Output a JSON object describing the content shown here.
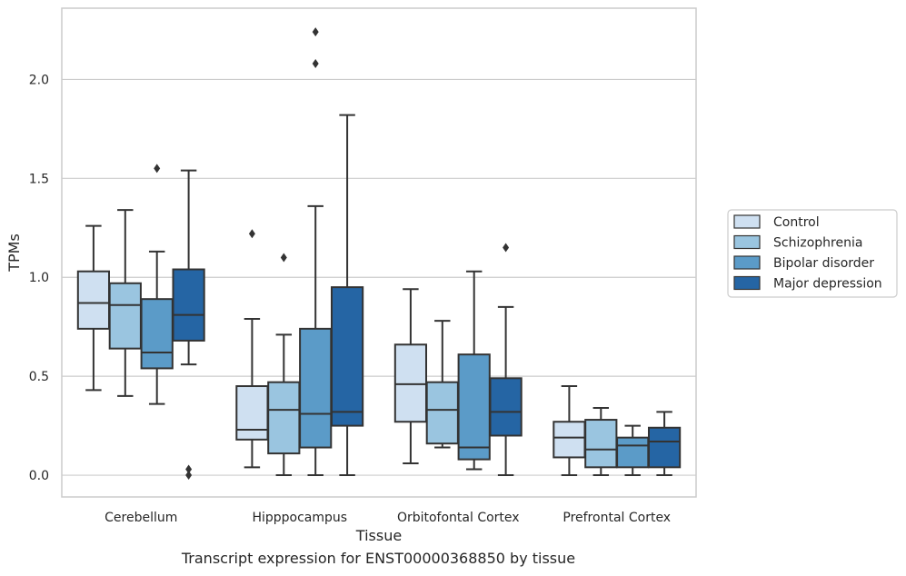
{
  "caption": "Transcript expression for ENST00000368850 by tissue",
  "chart_data": {
    "type": "box",
    "xlabel": "Tissue",
    "ylabel": "TPMs",
    "ylim": [
      -0.11,
      2.36
    ],
    "yticks": [
      "0.0",
      "0.5",
      "1.0",
      "1.5",
      "2.0"
    ],
    "ytick_values": [
      0.0,
      0.5,
      1.0,
      1.5,
      2.0
    ],
    "grid": "horizontal",
    "legend_position": "right",
    "categories": [
      "Cerebellum",
      "Hipppocampus",
      "Orbitofontal Cortex",
      "Prefrontal Cortex"
    ],
    "series": [
      {
        "name": "Control",
        "color": "#cfe0f1",
        "boxes": [
          {
            "whisker_low": 0.43,
            "q1": 0.74,
            "median": 0.87,
            "q3": 1.03,
            "whisker_high": 1.26,
            "outliers": []
          },
          {
            "whisker_low": 0.04,
            "q1": 0.18,
            "median": 0.23,
            "q3": 0.45,
            "whisker_high": 0.79,
            "outliers": [
              1.22
            ]
          },
          {
            "whisker_low": 0.06,
            "q1": 0.27,
            "median": 0.46,
            "q3": 0.66,
            "whisker_high": 0.94,
            "outliers": []
          },
          {
            "whisker_low": 0.0,
            "q1": 0.09,
            "median": 0.19,
            "q3": 0.27,
            "whisker_high": 0.45,
            "outliers": []
          }
        ]
      },
      {
        "name": "Schizophrenia",
        "color": "#9ac5e0",
        "boxes": [
          {
            "whisker_low": 0.4,
            "q1": 0.64,
            "median": 0.86,
            "q3": 0.97,
            "whisker_high": 1.34,
            "outliers": []
          },
          {
            "whisker_low": 0.0,
            "q1": 0.11,
            "median": 0.33,
            "q3": 0.47,
            "whisker_high": 0.71,
            "outliers": [
              1.1
            ]
          },
          {
            "whisker_low": 0.14,
            "q1": 0.16,
            "median": 0.33,
            "q3": 0.47,
            "whisker_high": 0.78,
            "outliers": []
          },
          {
            "whisker_low": 0.0,
            "q1": 0.04,
            "median": 0.13,
            "q3": 0.28,
            "whisker_high": 0.34,
            "outliers": []
          }
        ]
      },
      {
        "name": "Bipolar disorder",
        "color": "#5b9bc8",
        "boxes": [
          {
            "whisker_low": 0.36,
            "q1": 0.54,
            "median": 0.62,
            "q3": 0.89,
            "whisker_high": 1.13,
            "outliers": [
              1.55
            ]
          },
          {
            "whisker_low": 0.0,
            "q1": 0.14,
            "median": 0.31,
            "q3": 0.74,
            "whisker_high": 1.36,
            "outliers": [
              2.08,
              2.24
            ]
          },
          {
            "whisker_low": 0.03,
            "q1": 0.08,
            "median": 0.14,
            "q3": 0.61,
            "whisker_high": 1.03,
            "outliers": []
          },
          {
            "whisker_low": 0.0,
            "q1": 0.04,
            "median": 0.15,
            "q3": 0.19,
            "whisker_high": 0.25,
            "outliers": []
          }
        ]
      },
      {
        "name": "Major depression",
        "color": "#2565a4",
        "boxes": [
          {
            "whisker_low": 0.56,
            "q1": 0.68,
            "median": 0.81,
            "q3": 1.04,
            "whisker_high": 1.54,
            "outliers": [
              0.0,
              0.03
            ]
          },
          {
            "whisker_low": 0.0,
            "q1": 0.25,
            "median": 0.32,
            "q3": 0.95,
            "whisker_high": 1.82,
            "outliers": []
          },
          {
            "whisker_low": 0.0,
            "q1": 0.2,
            "median": 0.32,
            "q3": 0.49,
            "whisker_high": 0.85,
            "outliers": [
              1.15
            ]
          },
          {
            "whisker_low": 0.0,
            "q1": 0.04,
            "median": 0.17,
            "q3": 0.24,
            "whisker_high": 0.32,
            "outliers": []
          }
        ]
      }
    ]
  }
}
